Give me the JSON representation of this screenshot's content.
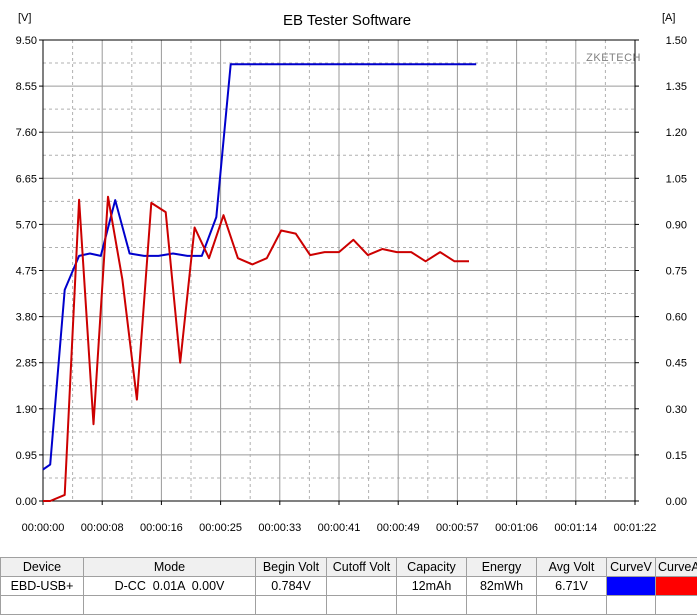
{
  "chart_data": {
    "type": "line",
    "title": "EB Tester Software",
    "brand": "ZKETECH",
    "left_unit": "[V]",
    "right_unit": "[A]",
    "ylim_left": [
      0,
      9.5
    ],
    "ylim_right": [
      0,
      1.5
    ],
    "x_range_seconds": [
      0,
      82
    ],
    "grid": true,
    "left_ticks": [
      "0.00",
      "0.95",
      "1.90",
      "2.85",
      "3.80",
      "4.75",
      "5.70",
      "6.65",
      "7.60",
      "8.55",
      "9.50"
    ],
    "right_ticks": [
      "0.00",
      "0.15",
      "0.30",
      "0.45",
      "0.60",
      "0.75",
      "0.90",
      "1.05",
      "1.20",
      "1.35",
      "1.50"
    ],
    "x_ticks": [
      "00:00:00",
      "00:00:08",
      "00:00:16",
      "00:00:25",
      "00:00:33",
      "00:00:41",
      "00:00:49",
      "00:00:57",
      "00:01:06",
      "00:01:14",
      "00:01:22"
    ],
    "series": [
      {
        "axis": "left",
        "color": "#0000cc",
        "x": [
          0,
          1,
          3,
          5,
          6.5,
          8,
          10,
          12,
          14,
          16,
          18,
          20,
          22,
          24,
          26,
          60
        ],
        "y": [
          0.65,
          0.75,
          4.35,
          5.05,
          5.1,
          5.05,
          6.2,
          5.1,
          5.05,
          5.05,
          5.1,
          5.05,
          5.05,
          5.85,
          9.0,
          9.0
        ]
      },
      {
        "axis": "right",
        "color": "#cc0000",
        "x": [
          0,
          1,
          3,
          5,
          7,
          9,
          11,
          13,
          15,
          17,
          19,
          21,
          23,
          25,
          27,
          29,
          31,
          33,
          35,
          37,
          39,
          41,
          43,
          45,
          47,
          49,
          51,
          53,
          55,
          57,
          59
        ],
        "y": [
          0.0,
          0.0,
          0.02,
          0.98,
          0.25,
          0.99,
          0.72,
          0.33,
          0.97,
          0.94,
          0.45,
          0.89,
          0.79,
          0.93,
          0.79,
          0.77,
          0.79,
          0.88,
          0.87,
          0.8,
          0.81,
          0.81,
          0.85,
          0.8,
          0.82,
          0.81,
          0.81,
          0.78,
          0.81,
          0.78,
          0.78
        ]
      }
    ]
  },
  "table": {
    "headers": [
      "Device",
      "Mode",
      "Begin Volt",
      "Cutoff Volt",
      "Capacity",
      "Energy",
      "Avg Volt",
      "CurveV",
      "CurveA"
    ],
    "row": {
      "device": "EBD-USB+",
      "mode": "D-CC  0.01A  0.00V",
      "begin_volt": "0.784V",
      "cutoff_volt": "",
      "capacity": "12mAh",
      "energy": "82mWh",
      "avg_volt": "6.71V",
      "curve_v_color": "#0000ff",
      "curve_a_color": "#ff0000"
    }
  }
}
